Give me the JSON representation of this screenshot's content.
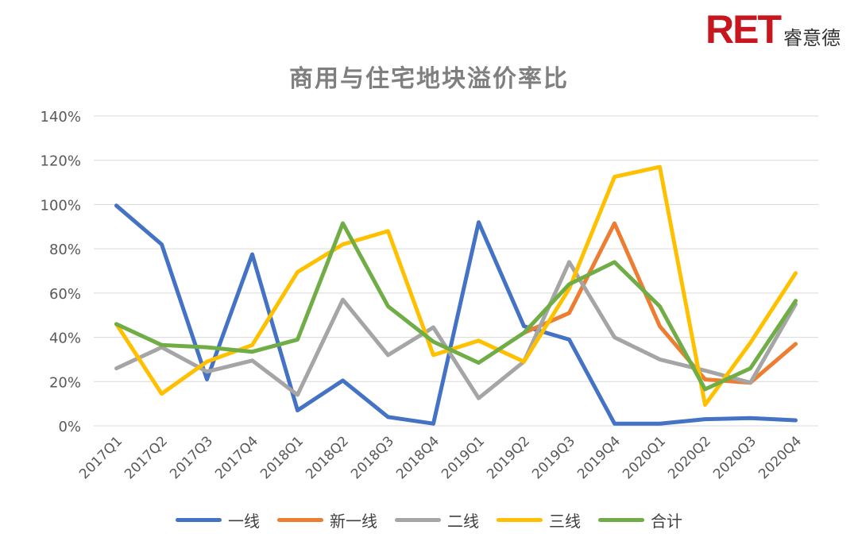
{
  "logo": {
    "mark": "RET",
    "text": "睿意德"
  },
  "chart_data": {
    "type": "line",
    "title": "商用与住宅地块溢价率比",
    "xlabel": "",
    "ylabel": "",
    "categories": [
      "2017Q1",
      "2017Q2",
      "2017Q3",
      "2017Q4",
      "2018Q1",
      "2018Q2",
      "2018Q3",
      "2018Q4",
      "2019Q1",
      "2019Q2",
      "2019Q3",
      "2019Q4",
      "2020Q1",
      "2020Q2",
      "2020Q3",
      "2020Q4"
    ],
    "ylim": [
      0,
      140
    ],
    "yticks": [
      "0%",
      "20%",
      "40%",
      "60%",
      "80%",
      "100%",
      "120%",
      "140%"
    ],
    "grid": true,
    "legend_position": "bottom",
    "series": [
      {
        "name": "一线",
        "color": "#4472c4",
        "values": [
          99.5,
          82,
          21,
          77.5,
          7,
          20.5,
          4,
          1,
          92,
          45,
          39,
          1,
          1,
          3,
          3.5,
          2.5
        ]
      },
      {
        "name": "新一线",
        "color": "#ed7d31",
        "values": [
          null,
          null,
          null,
          null,
          null,
          null,
          null,
          null,
          null,
          42,
          51,
          91.5,
          45,
          21,
          19.5,
          37
        ]
      },
      {
        "name": "二线",
        "color": "#a5a5a5",
        "values": [
          26,
          35.5,
          24.5,
          29.5,
          14,
          57,
          32,
          44.5,
          12.5,
          29,
          74,
          40,
          30,
          25,
          19.5,
          55
        ]
      },
      {
        "name": "三线",
        "color": "#ffc000",
        "values": [
          46,
          14.5,
          29,
          36.5,
          69.5,
          82,
          88,
          32,
          38.5,
          29,
          62,
          112.5,
          117,
          9.5,
          37.5,
          69
        ]
      },
      {
        "name": "合计",
        "color": "#70ad47",
        "values": [
          46,
          36.5,
          35.5,
          33.5,
          39,
          91.5,
          54,
          38,
          28.5,
          42,
          64,
          74,
          54,
          16.5,
          26,
          56.5
        ]
      }
    ]
  }
}
